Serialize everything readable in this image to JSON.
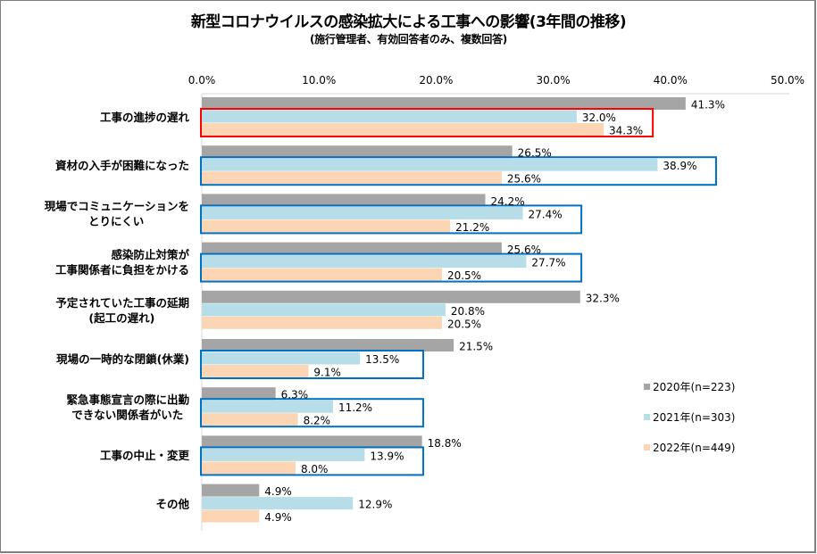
{
  "chart_data": {
    "type": "bar",
    "orientation": "horizontal",
    "title": "新型コロナウイルスの感染拡大による工事への影響(3年間の推移)",
    "subtitle": "(施行管理者、有効回答者のみ、複数回答)",
    "xlabel": "",
    "ylabel": "",
    "xlim": [
      0,
      50
    ],
    "x_ticks": [
      "0.0%",
      "10.0%",
      "20.0%",
      "30.0%",
      "40.0%",
      "50.0%"
    ],
    "x_tick_values": [
      0,
      10,
      20,
      30,
      40,
      50
    ],
    "grid": false,
    "legend_position": "right",
    "categories": [
      [
        "工事の進捗の遅れ"
      ],
      [
        "資材の入手が困難になった"
      ],
      [
        "現場でコミュニケーションを",
        "とりにくい"
      ],
      [
        "感染防止対策が",
        "工事関係者に負担をかける"
      ],
      [
        "予定されていた工事の延期",
        "(起工の遅れ)"
      ],
      [
        "現場の一時的な閉鎖(休業)"
      ],
      [
        "緊急事態宣言の際に出勤",
        "できない関係者がいた"
      ],
      [
        "工事の中止・変更"
      ],
      [
        "その他"
      ]
    ],
    "series": [
      {
        "name": "2020年(n=223)",
        "color": "#a5a5a5",
        "values": [
          41.3,
          26.5,
          24.2,
          25.6,
          32.3,
          21.5,
          6.3,
          18.8,
          4.9
        ],
        "labels": [
          "41.3%",
          "26.5%",
          "24.2%",
          "25.6%",
          "32.3%",
          "21.5%",
          "6.3%",
          "18.8%",
          "4.9%"
        ]
      },
      {
        "name": "2021年(n=303)",
        "color": "#b7dde8",
        "values": [
          32.0,
          38.9,
          27.4,
          27.7,
          20.8,
          13.5,
          11.2,
          13.9,
          12.9
        ],
        "labels": [
          "32.0%",
          "38.9%",
          "27.4%",
          "27.7%",
          "20.8%",
          "13.5%",
          "11.2%",
          "13.9%",
          "12.9%"
        ]
      },
      {
        "name": "2022年(n=449)",
        "color": "#fcd5b5",
        "values": [
          34.3,
          25.6,
          21.2,
          20.5,
          20.5,
          9.1,
          8.2,
          8.0,
          4.9
        ],
        "labels": [
          "34.3%",
          "25.6%",
          "21.2%",
          "20.5%",
          "20.5%",
          "9.1%",
          "8.2%",
          "8.0%",
          "4.9%"
        ]
      }
    ],
    "highlight_boxes": [
      {
        "category_index": 0,
        "series": [
          "2021年(n=303)",
          "2022年(n=449)"
        ],
        "color": "#ff0000",
        "extent_value": 38.5
      },
      {
        "category_index": 1,
        "series": [
          "2021年(n=303)",
          "2022年(n=449)"
        ],
        "color": "#0070c0",
        "extent_value": 43.9
      },
      {
        "category_index": 2,
        "series": [
          "2021年(n=303)",
          "2022年(n=449)"
        ],
        "color": "#0070c0",
        "extent_value": 32.4
      },
      {
        "category_index": 3,
        "series": [
          "2021年(n=303)",
          "2022年(n=449)"
        ],
        "color": "#0070c0",
        "extent_value": 32.4
      },
      {
        "category_index": 5,
        "series": [
          "2021年(n=303)",
          "2022年(n=449)"
        ],
        "color": "#0070c0",
        "extent_value": 18.9
      },
      {
        "category_index": 6,
        "series": [
          "2021年(n=303)",
          "2022年(n=449)"
        ],
        "color": "#0070c0",
        "extent_value": 18.9
      },
      {
        "category_index": 7,
        "series": [
          "2021年(n=303)",
          "2022年(n=449)"
        ],
        "color": "#0070c0",
        "extent_value": 18.9
      }
    ]
  }
}
